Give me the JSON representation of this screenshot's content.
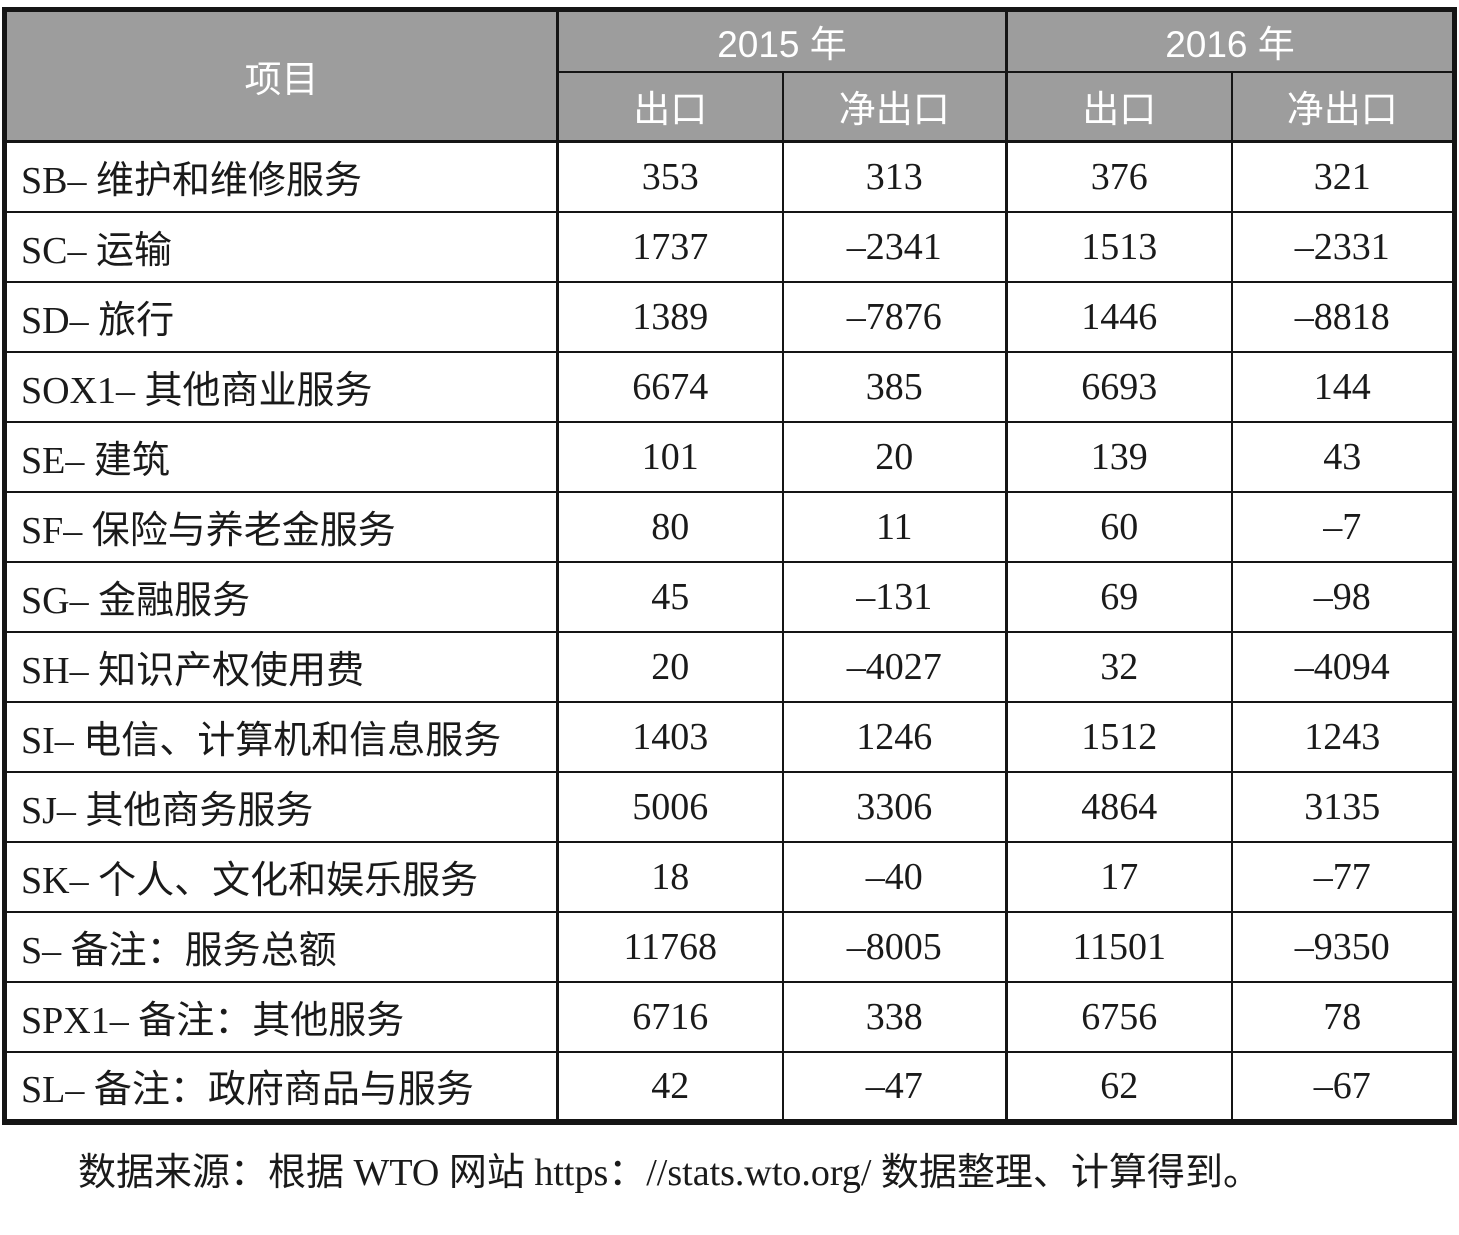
{
  "colors": {
    "header_bg": "#9d9d9d",
    "header_text": "#ffffff",
    "border": "#151515",
    "body_text": "#1a1a1a"
  },
  "header": {
    "item_col": "项目",
    "year_groups": [
      {
        "label": "2015 年",
        "sub_cols": [
          "出口",
          "净出口"
        ]
      },
      {
        "label": "2016 年",
        "sub_cols": [
          "出口",
          "净出口"
        ]
      }
    ]
  },
  "chart_data": {
    "type": "table",
    "title": "",
    "columns": [
      "项目",
      "2015年-出口",
      "2015年-净出口",
      "2016年-出口",
      "2016年-净出口"
    ],
    "rows": [
      {
        "label": "SB– 维护和维修服务",
        "values": [
          353,
          313,
          376,
          321
        ]
      },
      {
        "label": "SC– 运输",
        "values": [
          1737,
          -2341,
          1513,
          -2331
        ]
      },
      {
        "label": "SD– 旅行",
        "values": [
          1389,
          -7876,
          1446,
          -8818
        ]
      },
      {
        "label": "SOX1– 其他商业服务",
        "values": [
          6674,
          385,
          6693,
          144
        ]
      },
      {
        "label": "SE– 建筑",
        "values": [
          101,
          20,
          139,
          43
        ]
      },
      {
        "label": "SF– 保险与养老金服务",
        "values": [
          80,
          11,
          60,
          -7
        ]
      },
      {
        "label": "SG– 金融服务",
        "values": [
          45,
          -131,
          69,
          -98
        ]
      },
      {
        "label": "SH– 知识产权使用费",
        "values": [
          20,
          -4027,
          32,
          -4094
        ]
      },
      {
        "label": "SI– 电信、计算机和信息服务",
        "values": [
          1403,
          1246,
          1512,
          1243
        ]
      },
      {
        "label": "SJ– 其他商务服务",
        "values": [
          5006,
          3306,
          4864,
          3135
        ]
      },
      {
        "label": "SK– 个人、文化和娱乐服务",
        "values": [
          18,
          -40,
          17,
          -77
        ]
      },
      {
        "label": "S– 备注：服务总额",
        "values": [
          11768,
          -8005,
          11501,
          -9350
        ]
      },
      {
        "label": "SPX1– 备注：其他服务",
        "values": [
          6716,
          338,
          6756,
          78
        ]
      },
      {
        "label": "SL– 备注：政府商品与服务",
        "values": [
          42,
          -47,
          62,
          -67
        ]
      }
    ]
  },
  "footer": {
    "source_note": "数据来源：根据 WTO 网站 https：//stats.wto.org/ 数据整理、计算得到。"
  }
}
